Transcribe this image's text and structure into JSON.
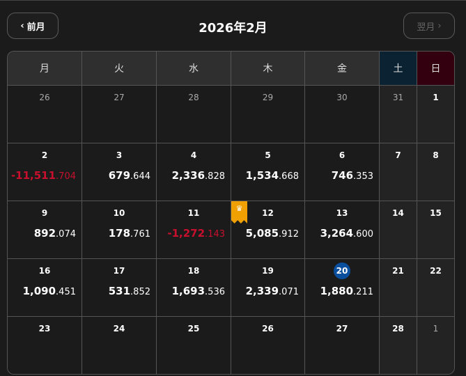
{
  "header": {
    "prev_label": "前月",
    "next_label": "翌月",
    "title": "2026年2月"
  },
  "weekdays": [
    "月",
    "火",
    "水",
    "木",
    "金",
    "土",
    "日"
  ],
  "colors": {
    "negative": "#c8102e",
    "today": "#0a4f9e",
    "crown": "#f0a000",
    "saturday_header": "#0b2233",
    "sunday_header": "#33000f"
  },
  "weeks": [
    [
      {
        "day": "26",
        "other": true
      },
      {
        "day": "27",
        "other": true
      },
      {
        "day": "28",
        "other": true
      },
      {
        "day": "29",
        "other": true
      },
      {
        "day": "30",
        "other": true
      },
      {
        "day": "31",
        "other": true
      },
      {
        "day": "1"
      }
    ],
    [
      {
        "day": "2",
        "int": "-11,511",
        "dec": ".704",
        "neg": true
      },
      {
        "day": "3",
        "int": "679",
        "dec": ".644"
      },
      {
        "day": "4",
        "int": "2,336",
        "dec": ".828"
      },
      {
        "day": "5",
        "int": "1,534",
        "dec": ".668"
      },
      {
        "day": "6",
        "int": "746",
        "dec": ".353"
      },
      {
        "day": "7"
      },
      {
        "day": "8"
      }
    ],
    [
      {
        "day": "9",
        "int": "892",
        "dec": ".074"
      },
      {
        "day": "10",
        "int": "178",
        "dec": ".761"
      },
      {
        "day": "11",
        "int": "-1,272",
        "dec": ".143",
        "neg": true
      },
      {
        "day": "12",
        "int": "5,085",
        "dec": ".912",
        "crown": true
      },
      {
        "day": "13",
        "int": "3,264",
        "dec": ".600"
      },
      {
        "day": "14"
      },
      {
        "day": "15"
      }
    ],
    [
      {
        "day": "16",
        "int": "1,090",
        "dec": ".451"
      },
      {
        "day": "17",
        "int": "531",
        "dec": ".852"
      },
      {
        "day": "18",
        "int": "1,693",
        "dec": ".536"
      },
      {
        "day": "19",
        "int": "2,339",
        "dec": ".071"
      },
      {
        "day": "20",
        "int": "1,880",
        "dec": ".211",
        "today": true
      },
      {
        "day": "21"
      },
      {
        "day": "22"
      }
    ],
    [
      {
        "day": "23"
      },
      {
        "day": "24"
      },
      {
        "day": "25"
      },
      {
        "day": "26"
      },
      {
        "day": "27"
      },
      {
        "day": "28"
      },
      {
        "day": "1",
        "other": true
      }
    ]
  ]
}
